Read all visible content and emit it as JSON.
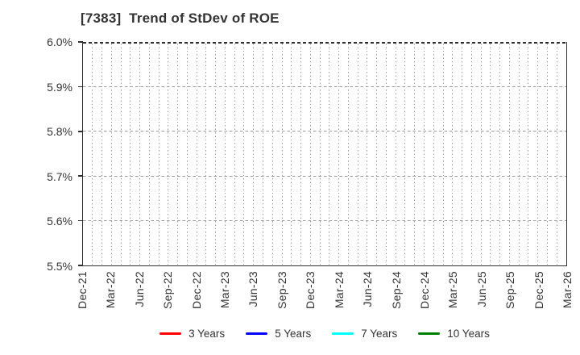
{
  "header": {
    "title": "[7383]  Trend of StDev of ROE"
  },
  "chart_data": {
    "type": "line",
    "title": "[7383]  Trend of StDev of ROE",
    "xlabel": "",
    "ylabel": "",
    "ylim": [
      5.5,
      6.0
    ],
    "y_unit": "%",
    "y_tick_labels": [
      "6.0%",
      "5.9%",
      "5.8%",
      "5.7%",
      "5.6%",
      "5.5%"
    ],
    "x_tick_labels": [
      "Dec-21",
      "Mar-22",
      "Jun-22",
      "Sep-22",
      "Dec-22",
      "Mar-23",
      "Jun-23",
      "Sep-23",
      "Dec-23",
      "Mar-24",
      "Jun-24",
      "Sep-24",
      "Dec-24",
      "Mar-25",
      "Jun-25",
      "Sep-25",
      "Dec-25",
      "Mar-26"
    ],
    "minor_x_divisions_per_tick": 3,
    "grid": true,
    "legend_position": "bottom",
    "series": [
      {
        "name": "3 Years",
        "color": "#ff0000",
        "values": []
      },
      {
        "name": "5 Years",
        "color": "#0000ff",
        "values": []
      },
      {
        "name": "7 Years",
        "color": "#00ffff",
        "values": []
      },
      {
        "name": "10 Years",
        "color": "#008000",
        "values": []
      }
    ]
  }
}
